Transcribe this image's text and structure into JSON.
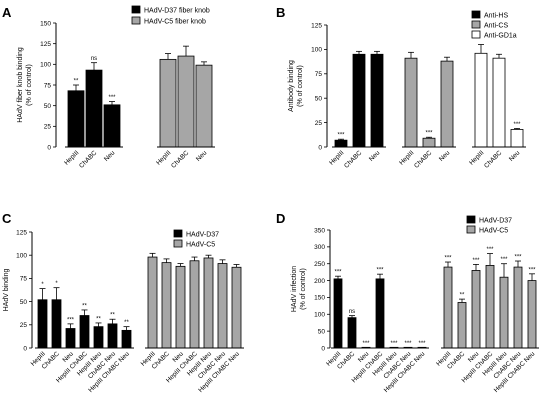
{
  "chart_data": [
    {
      "panel": "A",
      "type": "bar",
      "ylabel": [
        "HAdV fiber knob binding",
        "(% of control)"
      ],
      "ylim": [
        0,
        150
      ],
      "yticks": [
        0,
        25,
        50,
        75,
        100,
        125,
        150
      ],
      "legend_position": "top",
      "legend": [
        {
          "name": "HAdV-D37 fiber knob",
          "color": "#000000"
        },
        {
          "name": "HAdV-C5 fiber knob",
          "color": "#a6a6a6"
        }
      ],
      "groups": [
        {
          "bars": [
            {
              "label": "HepIII",
              "value": 68,
              "err": 7,
              "fill": "#000000",
              "sig": "**"
            },
            {
              "label": "ChABC",
              "value": 93,
              "err": 9,
              "fill": "#000000",
              "sig": "ns"
            },
            {
              "label": "Neu",
              "value": 51,
              "err": 4,
              "fill": "#000000",
              "sig": "***"
            }
          ]
        },
        {
          "bars": [
            {
              "label": "HepIII",
              "value": 106,
              "err": 7,
              "fill": "#a6a6a6",
              "sig": ""
            },
            {
              "label": "ChABC",
              "value": 110,
              "err": 12,
              "fill": "#a6a6a6",
              "sig": ""
            },
            {
              "label": "Neu",
              "value": 99,
              "err": 4,
              "fill": "#a6a6a6",
              "sig": ""
            }
          ]
        }
      ]
    },
    {
      "panel": "B",
      "type": "bar",
      "ylabel": [
        "Antibody binding",
        "(% of control)"
      ],
      "ylim": [
        0,
        125
      ],
      "yticks": [
        0,
        25,
        50,
        75,
        100,
        125
      ],
      "legend_position": "top-right",
      "legend": [
        {
          "name": "Anti-HS",
          "color": "#000000"
        },
        {
          "name": "Anti-CS",
          "color": "#a6a6a6"
        },
        {
          "name": "Anti-GD1a",
          "color": "#ffffff"
        }
      ],
      "groups": [
        {
          "bars": [
            {
              "label": "HepIII",
              "value": 7,
              "err": 1,
              "fill": "#000000",
              "sig": "***"
            },
            {
              "label": "ChABC",
              "value": 95,
              "err": 3,
              "fill": "#000000",
              "sig": ""
            },
            {
              "label": "Neu",
              "value": 95,
              "err": 3,
              "fill": "#000000",
              "sig": ""
            }
          ]
        },
        {
          "bars": [
            {
              "label": "HepIII",
              "value": 91,
              "err": 6,
              "fill": "#a6a6a6",
              "sig": ""
            },
            {
              "label": "ChABC",
              "value": 9,
              "err": 1,
              "fill": "#a6a6a6",
              "sig": "***"
            },
            {
              "label": "Neu",
              "value": 88,
              "err": 4,
              "fill": "#a6a6a6",
              "sig": ""
            }
          ]
        },
        {
          "bars": [
            {
              "label": "HepIII",
              "value": 96,
              "err": 9,
              "fill": "#ffffff",
              "sig": ""
            },
            {
              "label": "ChABC",
              "value": 91,
              "err": 4,
              "fill": "#ffffff",
              "sig": ""
            },
            {
              "label": "Neu",
              "value": 18,
              "err": 1,
              "fill": "#ffffff",
              "sig": "***"
            }
          ]
        }
      ]
    },
    {
      "panel": "C",
      "type": "bar",
      "ylabel": [
        "HAdV binding"
      ],
      "ylim": [
        0,
        125
      ],
      "yticks": [
        0,
        25,
        50,
        75,
        100,
        125
      ],
      "legend_position": "top-right",
      "legend": [
        {
          "name": "HAdV-D37",
          "color": "#000000"
        },
        {
          "name": "HAdV-C5",
          "color": "#a6a6a6"
        }
      ],
      "groups": [
        {
          "bars": [
            {
              "label": "HepIII",
              "value": 52,
              "err": 12,
              "fill": "#000000",
              "sig": "*"
            },
            {
              "label": "ChABC",
              "value": 52,
              "err": 13,
              "fill": "#000000",
              "sig": "*"
            },
            {
              "label": "Neu",
              "value": 21,
              "err": 5,
              "fill": "#000000",
              "sig": "***"
            },
            {
              "label": "HepIII ChABC",
              "value": 35,
              "err": 6,
              "fill": "#000000",
              "sig": "**"
            },
            {
              "label": "HepIII Neu",
              "value": 23,
              "err": 4,
              "fill": "#000000",
              "sig": "**"
            },
            {
              "label": "ChABC Neu",
              "value": 26,
              "err": 5,
              "fill": "#000000",
              "sig": "**"
            },
            {
              "label": "HepIII ChABC Neu",
              "value": 19,
              "err": 4,
              "fill": "#000000",
              "sig": "**"
            }
          ]
        },
        {
          "bars": [
            {
              "label": "HepIII",
              "value": 98,
              "err": 4,
              "fill": "#a6a6a6",
              "sig": ""
            },
            {
              "label": "ChABC",
              "value": 92,
              "err": 4,
              "fill": "#a6a6a6",
              "sig": ""
            },
            {
              "label": "Neu",
              "value": 88,
              "err": 3,
              "fill": "#a6a6a6",
              "sig": ""
            },
            {
              "label": "HepIII ChABC",
              "value": 94,
              "err": 4,
              "fill": "#a6a6a6",
              "sig": ""
            },
            {
              "label": "HepIII Neu",
              "value": 97,
              "err": 3,
              "fill": "#a6a6a6",
              "sig": ""
            },
            {
              "label": "ChABC Neu",
              "value": 91,
              "err": 4,
              "fill": "#a6a6a6",
              "sig": ""
            },
            {
              "label": "HepIII ChABC Neu",
              "value": 87,
              "err": 3,
              "fill": "#a6a6a6",
              "sig": ""
            }
          ]
        }
      ]
    },
    {
      "panel": "D",
      "type": "bar",
      "ylabel": [
        "HAdV infection",
        "(% of control)"
      ],
      "ylim": [
        0,
        350
      ],
      "yticks": [
        0,
        50,
        100,
        150,
        200,
        250,
        300,
        350
      ],
      "legend_position": "top-right",
      "legend": [
        {
          "name": "HAdV-D37",
          "color": "#000000"
        },
        {
          "name": "HAdV-C5",
          "color": "#a6a6a6"
        }
      ],
      "groups": [
        {
          "bars": [
            {
              "label": "HepIII",
              "value": 205,
              "err": 8,
              "fill": "#000000",
              "sig": "***"
            },
            {
              "label": "ChABC",
              "value": 90,
              "err": 6,
              "fill": "#000000",
              "sig": "ns"
            },
            {
              "label": "Neu",
              "value": 2,
              "err": 0,
              "fill": "#000000",
              "sig": "***"
            },
            {
              "label": "HepIII ChABC",
              "value": 205,
              "err": 14,
              "fill": "#000000",
              "sig": "***"
            },
            {
              "label": "HepIII Neu",
              "value": 2,
              "err": 0,
              "fill": "#000000",
              "sig": "***"
            },
            {
              "label": "ChABC Neu",
              "value": 2,
              "err": 0,
              "fill": "#000000",
              "sig": "***"
            },
            {
              "label": "HepIII ChABC Neu",
              "value": 2,
              "err": 0,
              "fill": "#000000",
              "sig": "***"
            }
          ]
        },
        {
          "bars": [
            {
              "label": "HepIII",
              "value": 240,
              "err": 15,
              "fill": "#a6a6a6",
              "sig": "***"
            },
            {
              "label": "ChABC",
              "value": 135,
              "err": 10,
              "fill": "#a6a6a6",
              "sig": "**"
            },
            {
              "label": "Neu",
              "value": 230,
              "err": 18,
              "fill": "#a6a6a6",
              "sig": "***"
            },
            {
              "label": "HepIII ChABC",
              "value": 245,
              "err": 35,
              "fill": "#a6a6a6",
              "sig": "***"
            },
            {
              "label": "HepIII Neu",
              "value": 210,
              "err": 40,
              "fill": "#a6a6a6",
              "sig": "***"
            },
            {
              "label": "ChABC Neu",
              "value": 240,
              "err": 18,
              "fill": "#a6a6a6",
              "sig": "***"
            },
            {
              "label": "HepIII ChABC Neu",
              "value": 200,
              "err": 20,
              "fill": "#a6a6a6",
              "sig": "***"
            }
          ]
        }
      ]
    }
  ]
}
